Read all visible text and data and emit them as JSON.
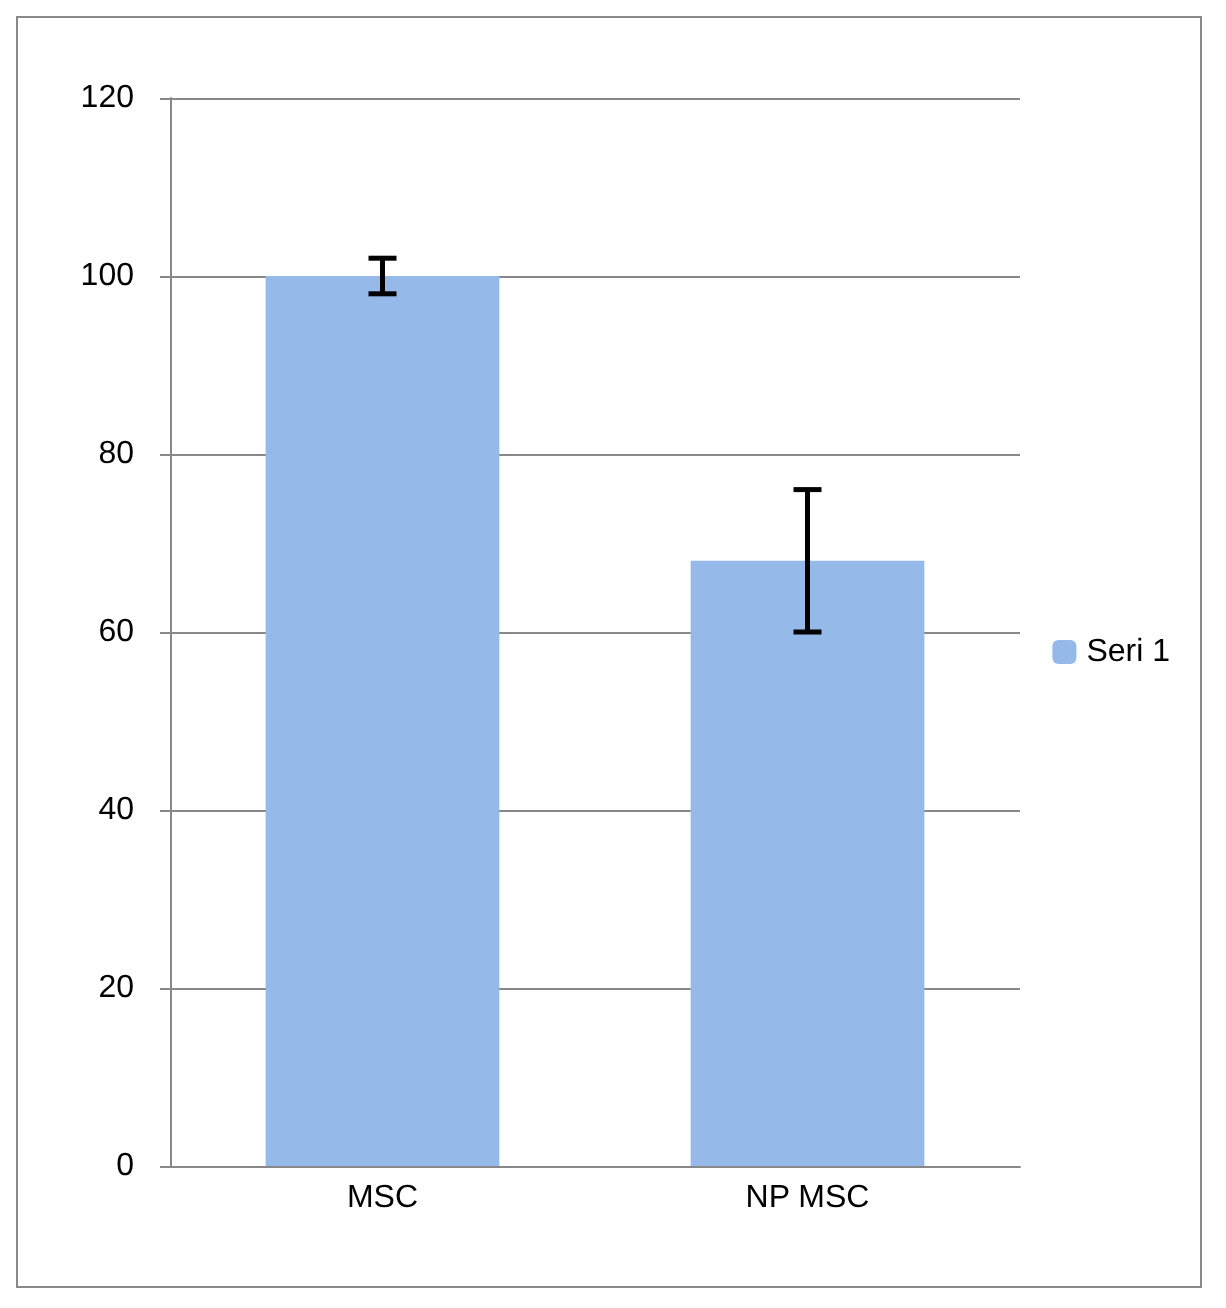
{
  "chart_data": {
    "type": "bar",
    "categories": [
      "MSC",
      "NP MSC"
    ],
    "series": [
      {
        "name": "Seri 1",
        "color": "#95b9e9",
        "values": [
          100,
          68
        ],
        "errors": [
          2,
          8
        ]
      }
    ],
    "ylim": [
      0,
      120
    ],
    "yticks": [
      0,
      20,
      40,
      60,
      80,
      100,
      120
    ],
    "grid": "y",
    "legend": "right"
  }
}
